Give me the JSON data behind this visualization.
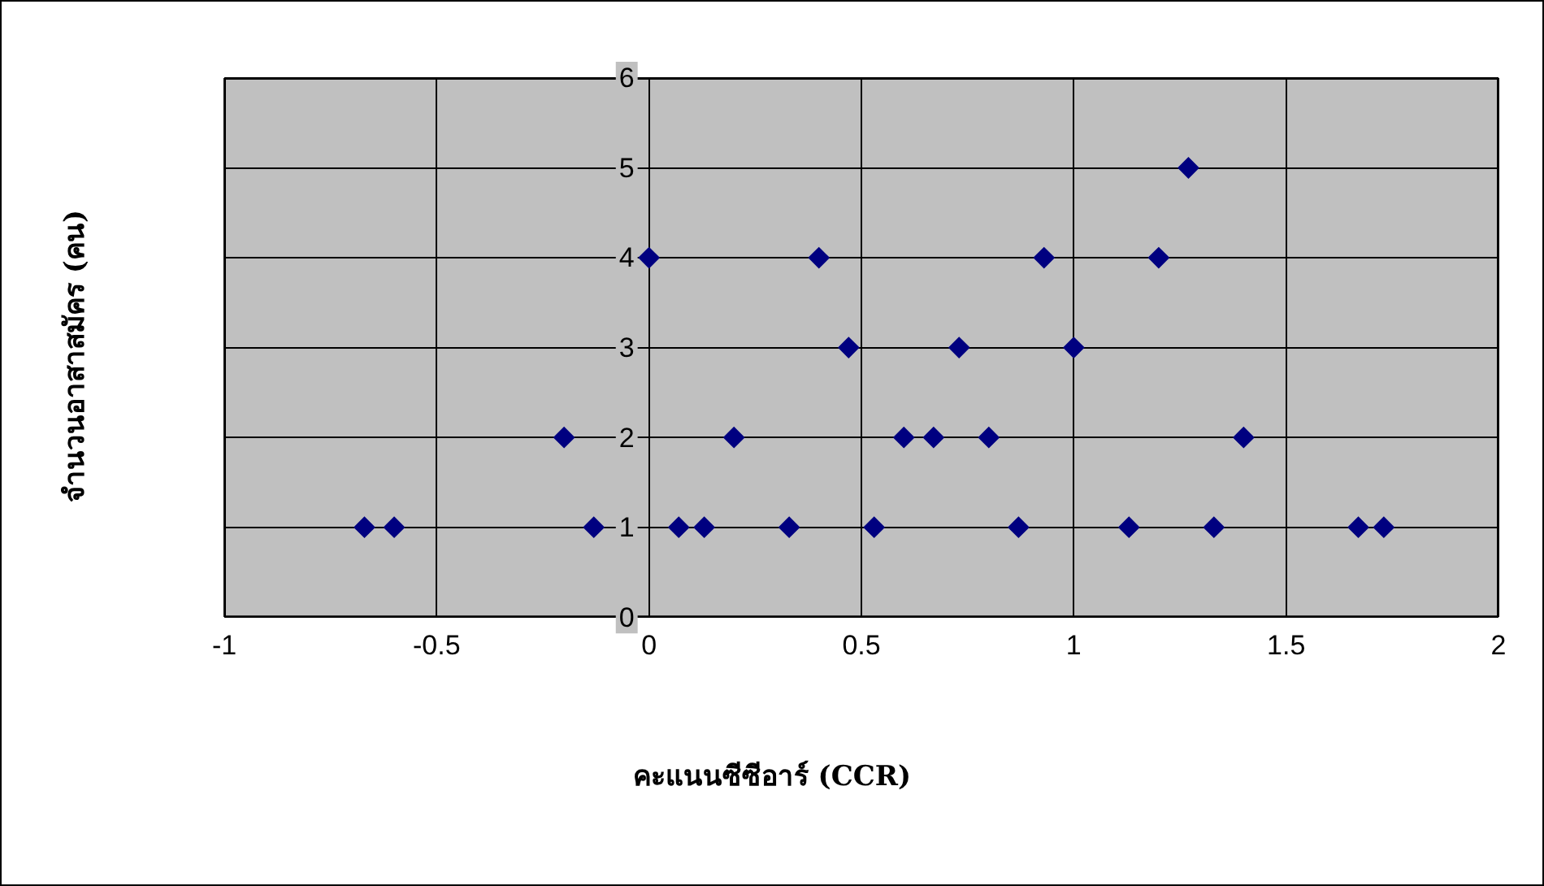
{
  "chart_data": {
    "type": "scatter",
    "xlabel": "คะแนนซีซีอาร์ (CCR)",
    "ylabel": "จำนวนอาสาสมัคร (คน)",
    "x": [
      -0.67,
      -0.6,
      -0.2,
      -0.13,
      0,
      0.07,
      0.13,
      0.2,
      0.33,
      0.4,
      0.47,
      0.53,
      0.6,
      0.67,
      0.73,
      0.8,
      0.87,
      0.93,
      1,
      1.13,
      1.2,
      1.27,
      1.33,
      1.4,
      1.67,
      1.73
    ],
    "values": [
      1,
      1,
      2,
      1,
      4,
      1,
      1,
      2,
      1,
      4,
      3,
      1,
      2,
      2,
      3,
      2,
      1,
      4,
      3,
      1,
      4,
      5,
      1,
      2,
      1,
      1
    ],
    "color": "#000080",
    "marker": "diamond",
    "grid": true,
    "xlim": [
      -1,
      2
    ],
    "xticks": [
      -1,
      -0.5,
      0,
      0.5,
      1,
      1.5,
      2
    ],
    "ylim": [
      0,
      6
    ],
    "yticks": [
      0,
      1,
      2,
      3,
      4,
      5,
      6
    ]
  }
}
